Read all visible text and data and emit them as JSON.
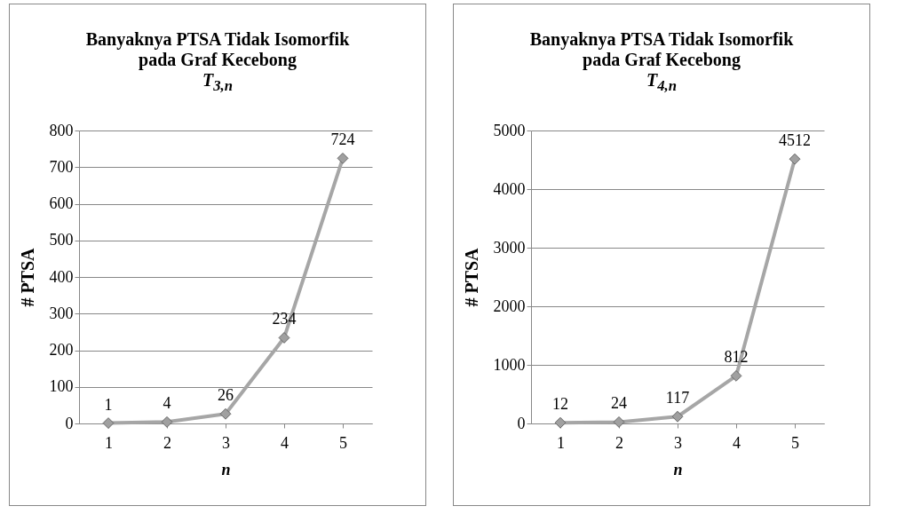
{
  "chart_data": [
    {
      "type": "line",
      "title": "Banyaknya PTSA Tidak Isomorfik pada Graf Kecebong",
      "subtitle": "T$_{3,n}$",
      "xlabel": "n",
      "ylabel": "# PTSA",
      "categories": [
        "1",
        "2",
        "3",
        "4",
        "5"
      ],
      "series": [
        {
          "color": "#a6a6a6",
          "values": [
            1,
            4,
            26,
            234,
            724
          ]
        }
      ],
      "ylim": [
        0,
        800
      ],
      "yticks": [
        0,
        100,
        200,
        300,
        400,
        500,
        600,
        700,
        800
      ],
      "grid": "y",
      "marker": "diamond",
      "data_labels": true
    },
    {
      "type": "line",
      "title": "Banyaknya PTSA Tidak Isomorfik pada Graf Kecebong",
      "subtitle": "T$_{4,n}$",
      "xlabel": "n",
      "ylabel": "# PTSA",
      "categories": [
        "1",
        "2",
        "3",
        "4",
        "5"
      ],
      "series": [
        {
          "color": "#a6a6a6",
          "values": [
            12,
            24,
            117,
            812,
            4512
          ]
        }
      ],
      "ylim": [
        0,
        5000
      ],
      "yticks": [
        0,
        1000,
        2000,
        3000,
        4000,
        5000
      ],
      "grid": "y",
      "marker": "diamond",
      "data_labels": true
    }
  ]
}
